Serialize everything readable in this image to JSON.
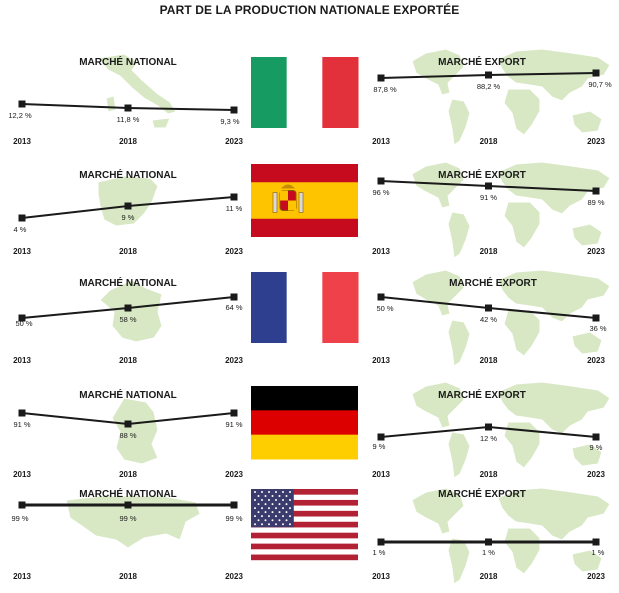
{
  "title": "PART DE LA PRODUCTION NATIONALE EXPORTÉE",
  "colors": {
    "line": "#1a1a1a",
    "map_fill": "#d8e8c4",
    "map_stroke": "#ffffff"
  },
  "countries": [
    {
      "flag": "italy",
      "flag_icon": "italy-flag-icon",
      "colors": [
        "#169b62",
        "#ffffff",
        "#e2313b"
      ]
    },
    {
      "flag": "spain",
      "flag_icon": "spain-flag-icon",
      "colors": [
        "#c60b1e",
        "#ffc400",
        "#c60b1e"
      ]
    },
    {
      "flag": "france",
      "flag_icon": "france-flag-icon",
      "colors": [
        "#2f3f8f",
        "#ffffff",
        "#ef4149"
      ]
    },
    {
      "flag": "germany",
      "flag_icon": "germany-flag-icon",
      "colors": [
        "#000000",
        "#dd0000",
        "#ffce00"
      ]
    },
    {
      "flag": "usa",
      "flag_icon": "usa-flag-icon",
      "colors": [
        "#b22234",
        "#ffffff",
        "#3c3b6e"
      ]
    }
  ],
  "chart_data": [
    {
      "type": "line",
      "row": 0,
      "side": "left",
      "title": "MARCHÉ NATIONAL",
      "map_icon": "italy-map-icon",
      "x": [
        "2013",
        "2018",
        "2023"
      ],
      "values": [
        12.2,
        11.8,
        9.3
      ],
      "labels": [
        "12,2 %",
        "11,8 %",
        "9,3 %"
      ]
    },
    {
      "type": "line",
      "row": 0,
      "side": "right",
      "title": "MARCHÉ EXPORT",
      "map_icon": "world-map-icon",
      "x": [
        "2013",
        "2018",
        "2023"
      ],
      "values": [
        87.8,
        88.2,
        90.7
      ],
      "labels": [
        "87,8 %",
        "88,2 %",
        "90,7 %"
      ]
    },
    {
      "type": "line",
      "row": 1,
      "side": "left",
      "title": "MARCHÉ NATIONAL",
      "map_icon": "spain-map-icon",
      "x": [
        "2013",
        "2018",
        "2023"
      ],
      "values": [
        4,
        9,
        11
      ],
      "labels": [
        "4 %",
        "9 %",
        "11 %"
      ]
    },
    {
      "type": "line",
      "row": 1,
      "side": "right",
      "title": "MARCHÉ EXPORT",
      "map_icon": "world-map-icon",
      "x": [
        "2013",
        "2018",
        "2023"
      ],
      "values": [
        96,
        91,
        89
      ],
      "labels": [
        "96 %",
        "91 %",
        "89 %"
      ]
    },
    {
      "type": "line",
      "row": 2,
      "side": "left",
      "title": "MARCHÉ NATIONAL",
      "map_icon": "france-map-icon",
      "x": [
        "2013",
        "2018",
        "2023"
      ],
      "values": [
        50,
        58,
        64
      ],
      "labels": [
        "50 %",
        "58 %",
        "64 %"
      ]
    },
    {
      "type": "line",
      "row": 2,
      "side": "right",
      "title": "MARCHÉ EXPORT",
      "map_icon": "world-map-icon",
      "x": [
        "2013",
        "2018",
        "2023"
      ],
      "values": [
        50,
        42,
        36
      ],
      "labels": [
        "50 %",
        "42 %",
        "36 %"
      ]
    },
    {
      "type": "line",
      "row": 3,
      "side": "left",
      "title": "MARCHÉ NATIONAL",
      "map_icon": "germany-map-icon",
      "x": [
        "2013",
        "2018",
        "2023"
      ],
      "values": [
        91,
        88,
        91
      ],
      "labels": [
        "91 %",
        "88 %",
        "91 %"
      ]
    },
    {
      "type": "line",
      "row": 3,
      "side": "right",
      "title": "MARCHÉ EXPORT",
      "map_icon": "world-map-icon",
      "x": [
        "2013",
        "2018",
        "2023"
      ],
      "values": [
        9,
        12,
        9
      ],
      "labels": [
        "9 %",
        "12 %",
        "9 %"
      ]
    },
    {
      "type": "line",
      "row": 4,
      "side": "left",
      "title": "MARCHÉ NATIONAL",
      "map_icon": "usa-map-icon",
      "x": [
        "2013",
        "2018",
        "2023"
      ],
      "values": [
        99,
        99,
        99
      ],
      "labels": [
        "99 %",
        "99 %",
        "99 %"
      ]
    },
    {
      "type": "line",
      "row": 4,
      "side": "right",
      "title": "MARCHÉ EXPORT",
      "map_icon": "world-map-icon",
      "x": [
        "2013",
        "2018",
        "2023"
      ],
      "values": [
        1,
        1,
        1
      ],
      "labels": [
        "1 %",
        "1 %",
        "1 %"
      ]
    }
  ]
}
